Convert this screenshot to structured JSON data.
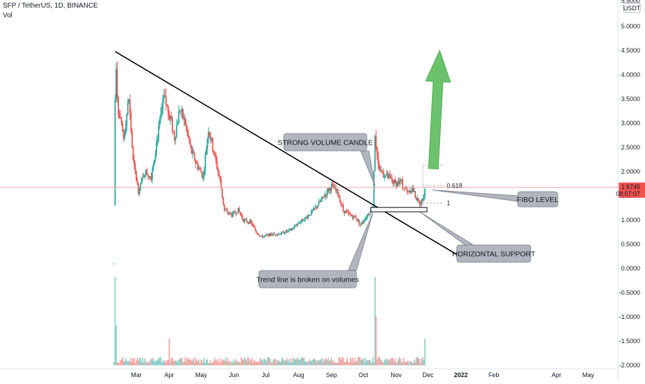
{
  "header": {
    "symbol_line": "SFP / TetherUS, 1D, BINANCE",
    "volume_label": "Vol"
  },
  "chart_data": {
    "type": "candlestick",
    "symbol": "SFP / TetherUS",
    "interval": "1D",
    "exchange": "BINANCE",
    "price_axis": {
      "unit_label": "USDT",
      "ticks": [
        "5.0000",
        "4.5000",
        "4.0000",
        "3.5000",
        "3.0000",
        "2.5000",
        "2.0000",
        "1.5000",
        "1.0000",
        "0.5000",
        "0.0000",
        "-0.5000",
        "-1.0000",
        "-1.5000",
        "-2.0000"
      ],
      "tick_values": [
        5,
        4.5,
        4,
        3.5,
        3,
        2.5,
        2,
        1.5,
        1,
        0.5,
        0,
        -0.5,
        -1,
        -1.5,
        -2
      ],
      "top_cut_label": "5.5000",
      "range": [
        -2.0,
        5.5
      ]
    },
    "time_axis": {
      "labels": [
        "Mar",
        "Apr",
        "May",
        "Jun",
        "Jul",
        "Aug",
        "Sep",
        "Oct",
        "Nov",
        "Dec",
        "2022",
        "Feb",
        "Apr",
        "May"
      ],
      "dates": [
        "2021-03-01",
        "2021-04-01",
        "2021-05-01",
        "2021-06-01",
        "2021-07-01",
        "2021-08-01",
        "2021-09-01",
        "2021-10-01",
        "2021-11-01",
        "2021-12-01",
        "2022-01-01",
        "2022-02-01",
        "2022-04-01",
        "2022-05-01"
      ],
      "bold_labels": [
        "2022"
      ]
    },
    "last_price": {
      "value": "1.6745",
      "countdown": "08:07:07",
      "color": "#ef5350"
    },
    "price_path": [
      [
        "2021-02-08",
        0.1
      ],
      [
        "2021-02-09",
        4.4
      ],
      [
        "2021-02-12",
        3.2
      ],
      [
        "2021-02-17",
        2.7
      ],
      [
        "2021-02-22",
        3.5
      ],
      [
        "2021-02-26",
        2.2
      ],
      [
        "2021-03-03",
        1.6
      ],
      [
        "2021-03-09",
        2.0
      ],
      [
        "2021-03-15",
        1.9
      ],
      [
        "2021-03-20",
        2.6
      ],
      [
        "2021-03-27",
        3.5
      ],
      [
        "2021-04-01",
        3.2
      ],
      [
        "2021-04-06",
        2.7
      ],
      [
        "2021-04-11",
        3.3
      ],
      [
        "2021-04-16",
        3.0
      ],
      [
        "2021-04-22",
        2.4
      ],
      [
        "2021-04-28",
        2.1
      ],
      [
        "2021-05-03",
        1.9
      ],
      [
        "2021-05-08",
        2.9
      ],
      [
        "2021-05-13",
        2.4
      ],
      [
        "2021-05-19",
        1.8
      ],
      [
        "2021-05-23",
        1.2
      ],
      [
        "2021-05-30",
        1.1
      ],
      [
        "2021-06-05",
        1.2
      ],
      [
        "2021-06-10",
        1.0
      ],
      [
        "2021-06-17",
        0.95
      ],
      [
        "2021-06-22",
        0.75
      ],
      [
        "2021-06-27",
        0.65
      ],
      [
        "2021-07-05",
        0.7
      ],
      [
        "2021-07-15",
        0.72
      ],
      [
        "2021-07-25",
        0.8
      ],
      [
        "2021-08-01",
        0.95
      ],
      [
        "2021-08-08",
        1.05
      ],
      [
        "2021-08-15",
        1.2
      ],
      [
        "2021-08-22",
        1.4
      ],
      [
        "2021-08-28",
        1.6
      ],
      [
        "2021-09-01",
        1.7
      ],
      [
        "2021-09-07",
        1.55
      ],
      [
        "2021-09-12",
        1.2
      ],
      [
        "2021-09-18",
        1.1
      ],
      [
        "2021-09-24",
        1.05
      ],
      [
        "2021-09-28",
        0.9
      ],
      [
        "2021-10-03",
        1.05
      ],
      [
        "2021-10-08",
        1.2
      ],
      [
        "2021-10-10",
        1.3
      ],
      [
        "2021-10-12",
        2.8
      ],
      [
        "2021-10-15",
        2.1
      ],
      [
        "2021-10-20",
        1.95
      ],
      [
        "2021-10-26",
        1.85
      ],
      [
        "2021-10-31",
        1.75
      ],
      [
        "2021-11-05",
        1.8
      ],
      [
        "2021-11-11",
        1.6
      ],
      [
        "2021-11-16",
        1.65
      ],
      [
        "2021-11-21",
        1.4
      ],
      [
        "2021-11-24",
        1.35
      ],
      [
        "2021-11-26",
        1.45
      ],
      [
        "2021-11-28",
        1.6745
      ]
    ],
    "volume_spikes": [
      [
        "2021-02-09",
        1.0
      ],
      [
        "2021-02-10",
        0.45
      ],
      [
        "2021-04-01",
        0.3
      ],
      [
        "2021-10-12",
        1.0
      ],
      [
        "2021-10-13",
        0.55
      ],
      [
        "2021-11-28",
        0.3
      ]
    ],
    "drawings": {
      "trend_line": {
        "from": [
          "2021-02-09",
          4.48
        ],
        "to": [
          "2021-12-31",
          0.25
        ]
      },
      "horizontal_support_box": {
        "from_date": "2021-10-08",
        "to_date": "2021-11-30",
        "low": 1.17,
        "high": 1.26
      },
      "fib_levels": [
        {
          "label": "1",
          "value": 1.35,
          "from_date": "2021-11-26",
          "to_date": "2021-12-16"
        },
        {
          "label": "0.618",
          "value": 1.71,
          "from_date": "2021-11-26",
          "to_date": "2021-12-16"
        },
        {
          "label": "",
          "value": 2.13,
          "from_date": "2021-11-26",
          "to_date": "2021-12-16"
        }
      ],
      "green_arrow": {
        "from": [
          "2021-12-06",
          2.06
        ],
        "to": [
          "2021-12-12",
          4.5
        ]
      }
    },
    "callouts": [
      {
        "text": "STRONG VOLUME CANDLE",
        "target": [
          "2021-10-12",
          1.7
        ]
      },
      {
        "text": "FIBO LEVEL",
        "target": [
          "2021-12-05",
          1.62
        ]
      },
      {
        "text": "HORIZONTAL SUPPORT",
        "target": [
          "2021-11-23",
          1.17
        ]
      },
      {
        "text": "Trend line is broken on volumes",
        "target": [
          "2021-10-10",
          1.15
        ]
      }
    ],
    "colors": {
      "up": "#26a69a",
      "down": "#ef5350",
      "trend_line": "#000000",
      "arrow_fill": "#6cc26c",
      "callout_fill": "#b2b5be"
    }
  }
}
